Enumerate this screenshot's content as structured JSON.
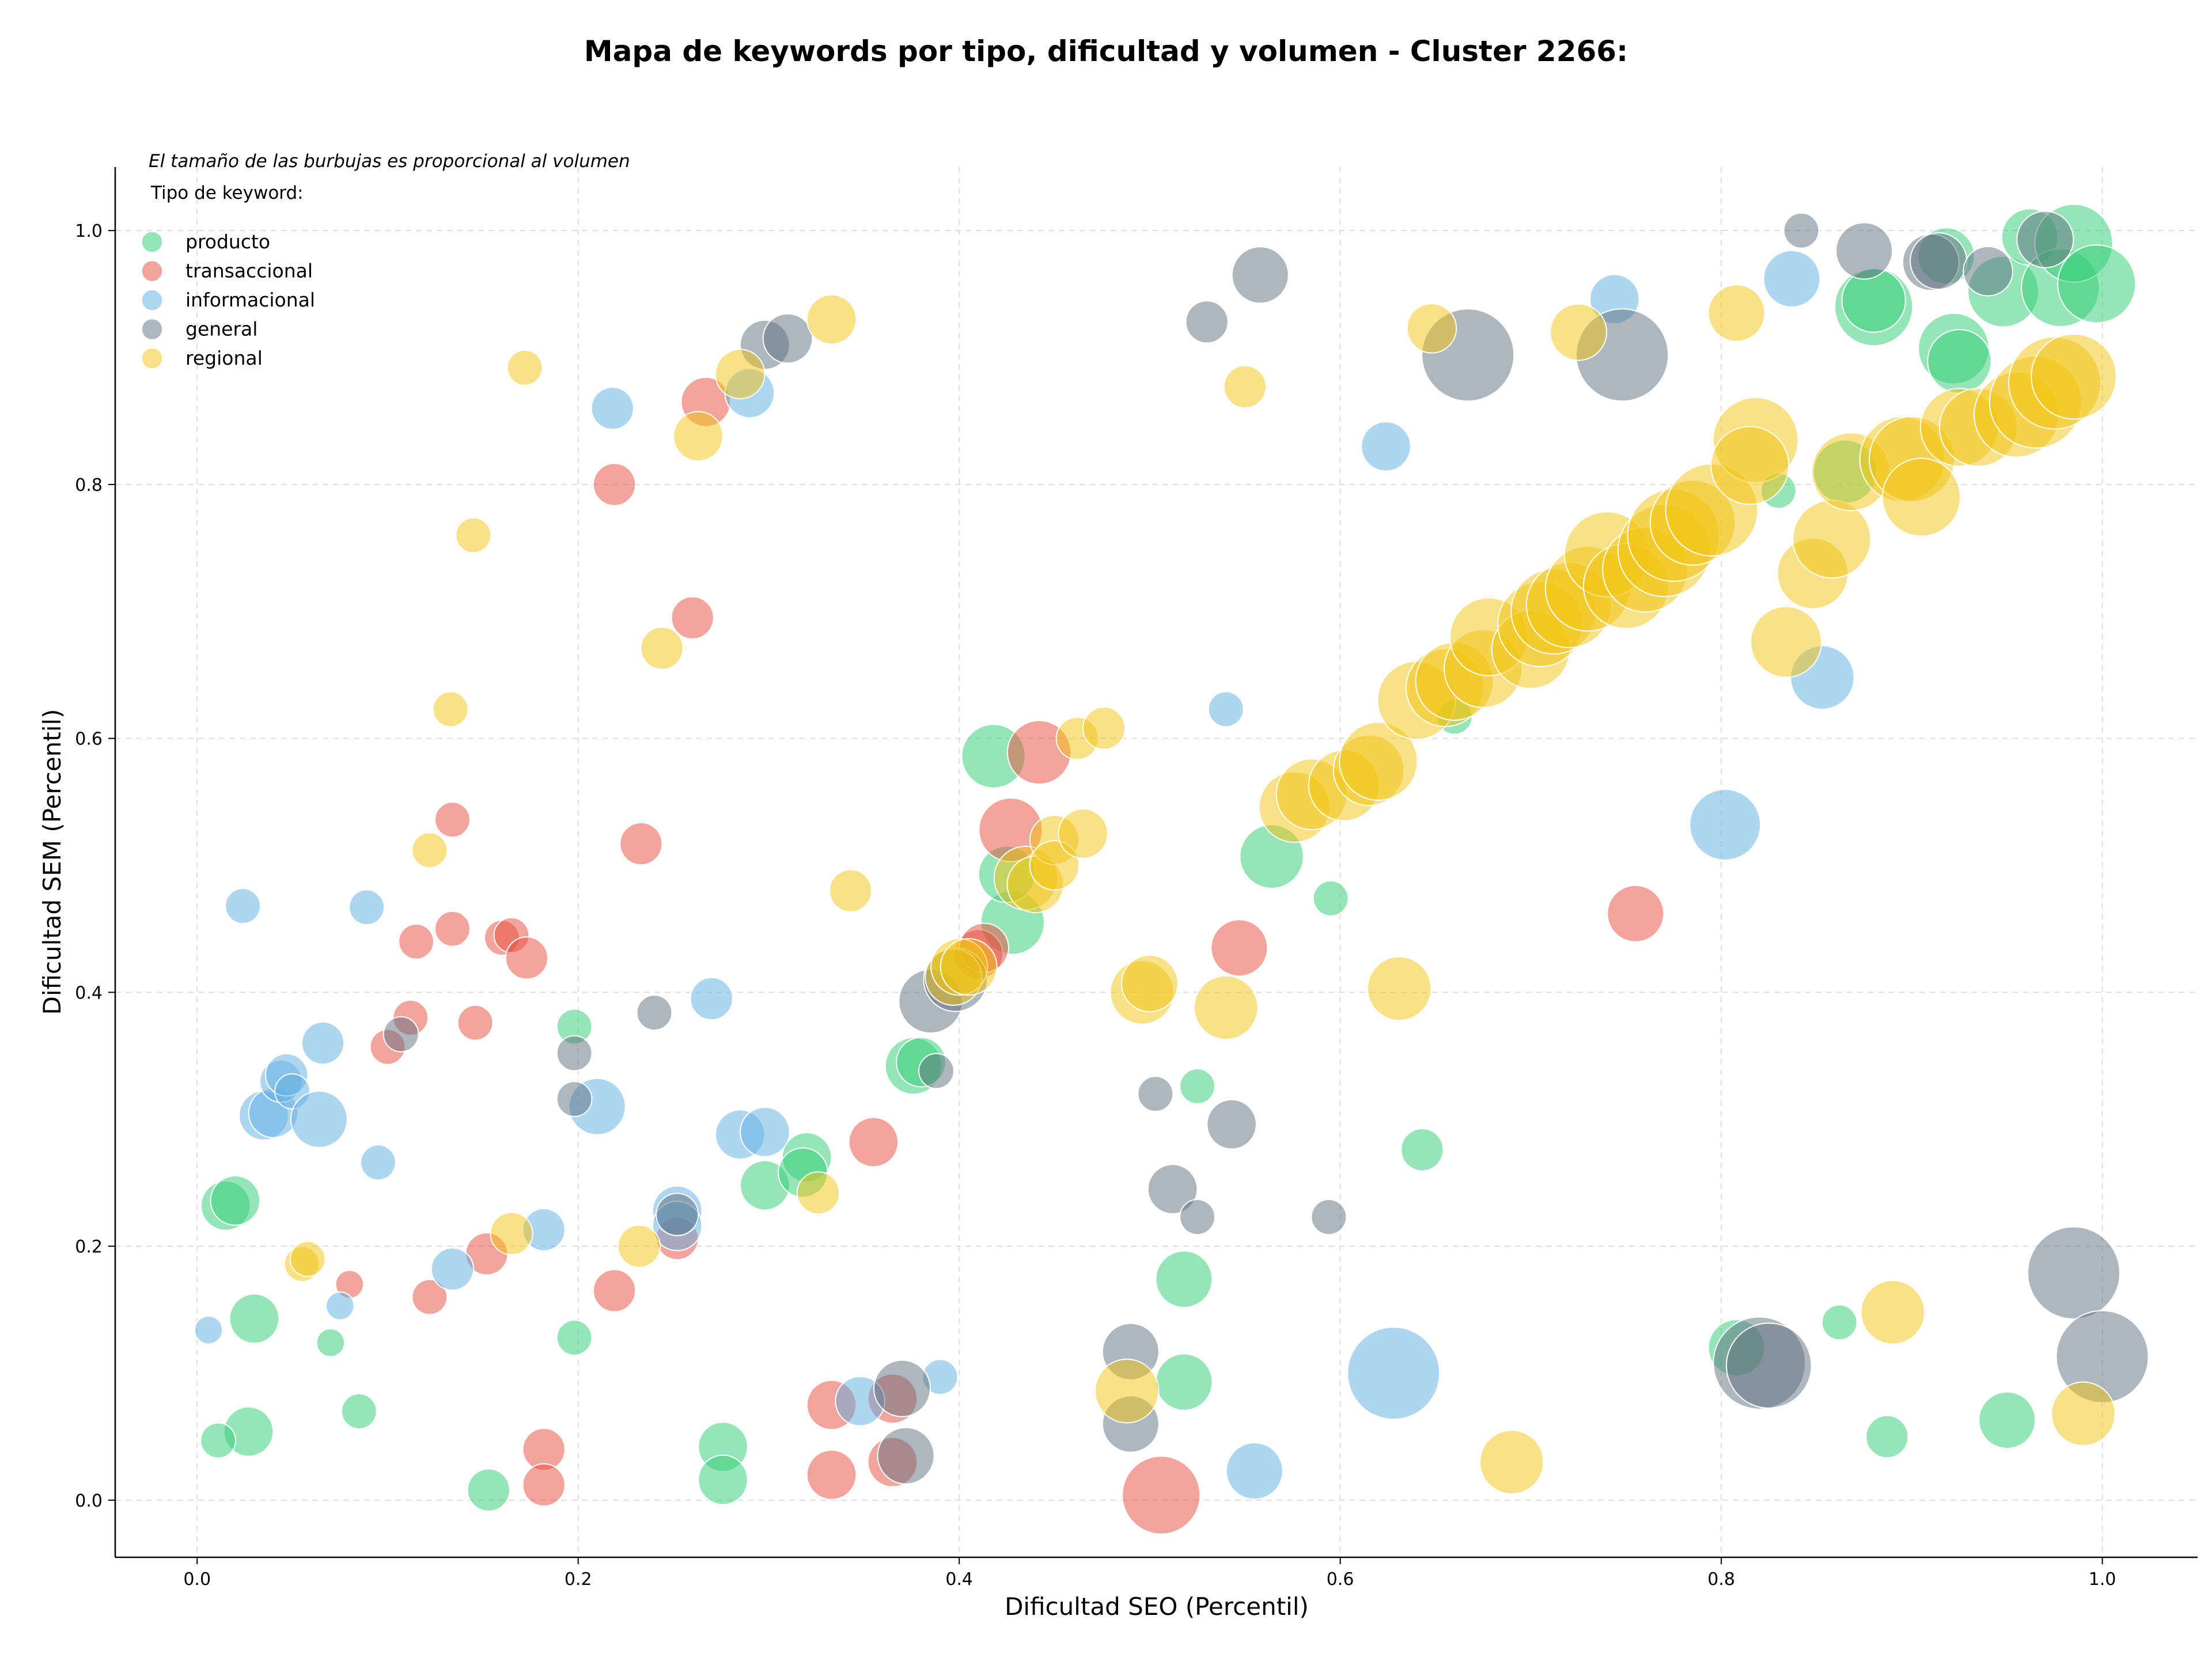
{
  "chart_data": {
    "type": "scatter",
    "title": "Mapa de keywords por tipo, dificultad y volumen - Cluster 2266:",
    "subtitle": "El tamaño de las burbujas es proporcional al volumen",
    "xlabel": "Dificultad SEO (Percentil)",
    "ylabel": "Dificultad SEM (Percentil)",
    "xlim": [
      -0.043,
      1.05
    ],
    "ylim": [
      -0.045,
      1.05
    ],
    "x_ticks": [
      "0.0",
      "0.2",
      "0.4",
      "0.6",
      "0.8",
      "1.0"
    ],
    "y_ticks": [
      "0.0",
      "0.2",
      "0.4",
      "0.6",
      "0.8",
      "1.0"
    ],
    "grid": true,
    "legend_title": "Tipo de keyword:",
    "legend_position": "top-left",
    "series": [
      {
        "name": "producto",
        "color": "#2ecc71",
        "points": [
          [
            0.015,
            0.232,
            4
          ],
          [
            0.02,
            0.236,
            4
          ],
          [
            0.03,
            0.143,
            4
          ],
          [
            0.027,
            0.054,
            4
          ],
          [
            0.011,
            0.047,
            2
          ],
          [
            0.07,
            0.124,
            1
          ],
          [
            0.085,
            0.07,
            2
          ],
          [
            0.198,
            0.373,
            2
          ],
          [
            0.198,
            0.128,
            2
          ],
          [
            0.153,
            0.008,
            3
          ],
          [
            0.276,
            0.042,
            4
          ],
          [
            0.276,
            0.016,
            4
          ],
          [
            0.298,
            0.248,
            4
          ],
          [
            0.32,
            0.27,
            4
          ],
          [
            0.318,
            0.258,
            4
          ],
          [
            0.376,
            0.342,
            5
          ],
          [
            0.38,
            0.345,
            4
          ],
          [
            0.418,
            0.586,
            6
          ],
          [
            0.428,
            0.455,
            6
          ],
          [
            0.425,
            0.493,
            5
          ],
          [
            0.564,
            0.507,
            6
          ],
          [
            0.518,
            0.174,
            5
          ],
          [
            0.518,
            0.093,
            5
          ],
          [
            0.525,
            0.326,
            2
          ],
          [
            0.595,
            0.474,
            2
          ],
          [
            0.66,
            0.617,
            2
          ],
          [
            0.643,
            0.276,
            3
          ],
          [
            0.808,
            0.12,
            5
          ],
          [
            0.83,
            0.795,
            2
          ],
          [
            0.862,
            0.14,
            2
          ],
          [
            0.887,
            0.05,
            3
          ],
          [
            0.95,
            0.063,
            5
          ],
          [
            0.865,
            0.81,
            6
          ],
          [
            0.88,
            0.94,
            8
          ],
          [
            0.88,
            0.945,
            6
          ],
          [
            0.918,
            0.98,
            5
          ],
          [
            0.922,
            0.907,
            7
          ],
          [
            0.925,
            0.897,
            6
          ],
          [
            0.948,
            0.952,
            7
          ],
          [
            0.962,
            0.995,
            5
          ],
          [
            0.978,
            0.955,
            8
          ],
          [
            0.985,
            0.99,
            8
          ],
          [
            0.997,
            0.958,
            8
          ]
        ]
      },
      {
        "name": "transaccional",
        "color": "#e74c3c",
        "points": [
          [
            0.08,
            0.17,
            1
          ],
          [
            0.1,
            0.357,
            2
          ],
          [
            0.112,
            0.38,
            2
          ],
          [
            0.115,
            0.44,
            2
          ],
          [
            0.122,
            0.16,
            2
          ],
          [
            0.134,
            0.45,
            2
          ],
          [
            0.134,
            0.536,
            2
          ],
          [
            0.146,
            0.376,
            2
          ],
          [
            0.152,
            0.194,
            3
          ],
          [
            0.16,
            0.443,
            2
          ],
          [
            0.165,
            0.445,
            2
          ],
          [
            0.173,
            0.427,
            3
          ],
          [
            0.182,
            0.04,
            3
          ],
          [
            0.182,
            0.012,
            3
          ],
          [
            0.219,
            0.8,
            3
          ],
          [
            0.219,
            0.165,
            3
          ],
          [
            0.233,
            0.517,
            3
          ],
          [
            0.252,
            0.206,
            3
          ],
          [
            0.26,
            0.695,
            3
          ],
          [
            0.267,
            0.865,
            4
          ],
          [
            0.333,
            0.075,
            4
          ],
          [
            0.333,
            0.02,
            4
          ],
          [
            0.355,
            0.282,
            4
          ],
          [
            0.365,
            0.03,
            4
          ],
          [
            0.365,
            0.08,
            4
          ],
          [
            0.41,
            0.43,
            4
          ],
          [
            0.413,
            0.435,
            4
          ],
          [
            0.427,
            0.528,
            6
          ],
          [
            0.442,
            0.589,
            6
          ],
          [
            0.506,
            0.004,
            8
          ],
          [
            0.547,
            0.435,
            5
          ],
          [
            0.755,
            0.462,
            5
          ]
        ]
      },
      {
        "name": "informacional",
        "color": "#5dade2",
        "points": [
          [
            0.006,
            0.134,
            1
          ],
          [
            0.024,
            0.468,
            2
          ],
          [
            0.035,
            0.303,
            4
          ],
          [
            0.04,
            0.305,
            4
          ],
          [
            0.044,
            0.33,
            3
          ],
          [
            0.047,
            0.335,
            3
          ],
          [
            0.05,
            0.322,
            2
          ],
          [
            0.064,
            0.3,
            5
          ],
          [
            0.066,
            0.36,
            3
          ],
          [
            0.075,
            0.153,
            1
          ],
          [
            0.089,
            0.467,
            2
          ],
          [
            0.095,
            0.266,
            2
          ],
          [
            0.134,
            0.182,
            3
          ],
          [
            0.182,
            0.213,
            3
          ],
          [
            0.21,
            0.31,
            5
          ],
          [
            0.218,
            0.86,
            3
          ],
          [
            0.252,
            0.228,
            4
          ],
          [
            0.252,
            0.216,
            4
          ],
          [
            0.27,
            0.395,
            3
          ],
          [
            0.285,
            0.288,
            4
          ],
          [
            0.29,
            0.872,
            4
          ],
          [
            0.298,
            0.29,
            4
          ],
          [
            0.348,
            0.078,
            4
          ],
          [
            0.39,
            0.097,
            2
          ],
          [
            0.54,
            0.623,
            2
          ],
          [
            0.555,
            0.023,
            5
          ],
          [
            0.624,
            0.83,
            4
          ],
          [
            0.628,
            0.1,
            10
          ],
          [
            0.744,
            0.946,
            4
          ],
          [
            0.802,
            0.532,
            7
          ],
          [
            0.837,
            0.962,
            5
          ],
          [
            0.853,
            0.648,
            6
          ]
        ]
      },
      {
        "name": "general",
        "color": "#5d6d7e",
        "points": [
          [
            0.107,
            0.367,
            2
          ],
          [
            0.198,
            0.352,
            2
          ],
          [
            0.198,
            0.316,
            2
          ],
          [
            0.24,
            0.384,
            2
          ],
          [
            0.252,
            0.225,
            3
          ],
          [
            0.298,
            0.91,
            4
          ],
          [
            0.31,
            0.915,
            4
          ],
          [
            0.37,
            0.088,
            5
          ],
          [
            0.372,
            0.035,
            5
          ],
          [
            0.388,
            0.338,
            2
          ],
          [
            0.385,
            0.393,
            6
          ],
          [
            0.398,
            0.41,
            6
          ],
          [
            0.49,
            0.117,
            5
          ],
          [
            0.49,
            0.06,
            5
          ],
          [
            0.503,
            0.32,
            2
          ],
          [
            0.512,
            0.245,
            4
          ],
          [
            0.525,
            0.223,
            2
          ],
          [
            0.53,
            0.928,
            3
          ],
          [
            0.543,
            0.296,
            4
          ],
          [
            0.558,
            0.965,
            5
          ],
          [
            0.594,
            0.223,
            2
          ],
          [
            0.667,
            0.902,
            10
          ],
          [
            0.748,
            0.902,
            10
          ],
          [
            0.82,
            0.108,
            10
          ],
          [
            0.825,
            0.106,
            9
          ],
          [
            0.842,
            1.0,
            2
          ],
          [
            0.875,
            0.984,
            5
          ],
          [
            0.91,
            0.975,
            5
          ],
          [
            0.914,
            0.976,
            5
          ],
          [
            0.94,
            0.968,
            4
          ],
          [
            0.97,
            0.993,
            5
          ],
          [
            0.985,
            0.179,
            10
          ],
          [
            1.0,
            0.113,
            10
          ]
        ]
      },
      {
        "name": "regional",
        "color": "#f1c40f",
        "points": [
          [
            0.055,
            0.186,
            2
          ],
          [
            0.058,
            0.19,
            2
          ],
          [
            0.122,
            0.512,
            2
          ],
          [
            0.133,
            0.623,
            2
          ],
          [
            0.145,
            0.76,
            2
          ],
          [
            0.172,
            0.892,
            2
          ],
          [
            0.165,
            0.21,
            3
          ],
          [
            0.232,
            0.2,
            3
          ],
          [
            0.244,
            0.671,
            3
          ],
          [
            0.263,
            0.838,
            4
          ],
          [
            0.285,
            0.887,
            4
          ],
          [
            0.326,
            0.242,
            3
          ],
          [
            0.333,
            0.93,
            4
          ],
          [
            0.343,
            0.48,
            3
          ],
          [
            0.397,
            0.412,
            5
          ],
          [
            0.4,
            0.42,
            5
          ],
          [
            0.405,
            0.42,
            5
          ],
          [
            0.435,
            0.49,
            6
          ],
          [
            0.44,
            0.485,
            5
          ],
          [
            0.45,
            0.52,
            4
          ],
          [
            0.45,
            0.5,
            4
          ],
          [
            0.462,
            0.6,
            3
          ],
          [
            0.465,
            0.525,
            4
          ],
          [
            0.476,
            0.608,
            3
          ],
          [
            0.488,
            0.086,
            6
          ],
          [
            0.496,
            0.4,
            6
          ],
          [
            0.5,
            0.407,
            5
          ],
          [
            0.54,
            0.388,
            6
          ],
          [
            0.55,
            0.877,
            3
          ],
          [
            0.576,
            0.546,
            7
          ],
          [
            0.585,
            0.556,
            7
          ],
          [
            0.602,
            0.563,
            7
          ],
          [
            0.615,
            0.575,
            7
          ],
          [
            0.62,
            0.582,
            8
          ],
          [
            0.631,
            0.403,
            6
          ],
          [
            0.64,
            0.63,
            8
          ],
          [
            0.648,
            0.923,
            4
          ],
          [
            0.655,
            0.64,
            8
          ],
          [
            0.66,
            0.645,
            8
          ],
          [
            0.675,
            0.655,
            8
          ],
          [
            0.678,
            0.68,
            8
          ],
          [
            0.69,
            0.03,
            6
          ],
          [
            0.7,
            0.67,
            8
          ],
          [
            0.705,
            0.69,
            9
          ],
          [
            0.712,
            0.7,
            9
          ],
          [
            0.72,
            0.705,
            9
          ],
          [
            0.725,
            0.92,
            5
          ],
          [
            0.73,
            0.718,
            9
          ],
          [
            0.74,
            0.745,
            9
          ],
          [
            0.75,
            0.72,
            9
          ],
          [
            0.76,
            0.733,
            9
          ],
          [
            0.77,
            0.748,
            10
          ],
          [
            0.775,
            0.76,
            10
          ],
          [
            0.785,
            0.77,
            9
          ],
          [
            0.795,
            0.78,
            10
          ],
          [
            0.808,
            0.935,
            5
          ],
          [
            0.818,
            0.835,
            9
          ],
          [
            0.815,
            0.815,
            8
          ],
          [
            0.834,
            0.676,
            7
          ],
          [
            0.848,
            0.73,
            7
          ],
          [
            0.858,
            0.757,
            8
          ],
          [
            0.868,
            0.81,
            8
          ],
          [
            0.89,
            0.148,
            6
          ],
          [
            0.895,
            0.82,
            9
          ],
          [
            0.9,
            0.82,
            9
          ],
          [
            0.905,
            0.79,
            8
          ],
          [
            0.925,
            0.845,
            8
          ],
          [
            0.935,
            0.845,
            8
          ],
          [
            0.955,
            0.855,
            9
          ],
          [
            0.965,
            0.865,
            10
          ],
          [
            0.975,
            0.88,
            10
          ],
          [
            0.985,
            0.885,
            9
          ],
          [
            0.99,
            0.068,
            6
          ]
        ]
      }
    ]
  }
}
